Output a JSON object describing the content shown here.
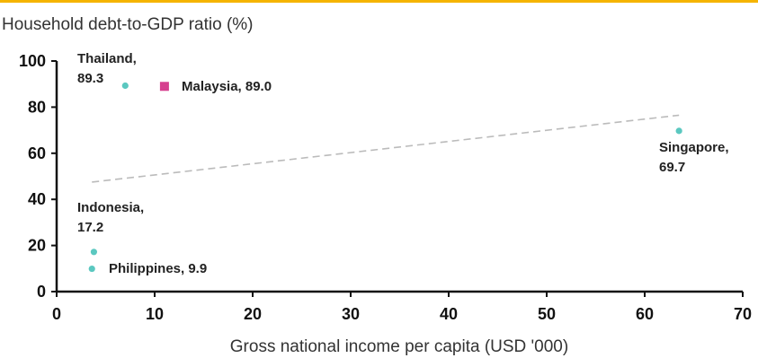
{
  "accent_color": "#f5b400",
  "chart_data": {
    "type": "scatter",
    "title": "Household debt-to-GDP ratio (%)",
    "xlabel": "Gross national income per capita (USD '000)",
    "ylabel": "",
    "xlim": [
      0,
      70
    ],
    "ylim": [
      0,
      100
    ],
    "x_ticks": [
      "0",
      "10",
      "20",
      "30",
      "40",
      "50",
      "60",
      "70"
    ],
    "y_ticks": [
      "0",
      "20",
      "40",
      "60",
      "80",
      "100"
    ],
    "grid": false,
    "points": [
      {
        "label_lines": [
          "Thailand,",
          "89.3"
        ],
        "x": 7.0,
        "y": 89.3,
        "color": "#5bc8c0",
        "marker": "circle"
      },
      {
        "label_lines": [
          "Malaysia, 89.0"
        ],
        "x": 11.0,
        "y": 89.0,
        "color": "#d6408f",
        "marker": "square"
      },
      {
        "label_lines": [
          "Singapore,",
          "69.7"
        ],
        "x": 63.5,
        "y": 69.7,
        "color": "#5bc8c0",
        "marker": "circle"
      },
      {
        "label_lines": [
          "Indonesia,",
          "17.2"
        ],
        "x": 3.8,
        "y": 17.2,
        "color": "#5bc8c0",
        "marker": "circle"
      },
      {
        "label_lines": [
          "Philippines, 9.9"
        ],
        "x": 3.6,
        "y": 9.9,
        "color": "#5bc8c0",
        "marker": "circle"
      }
    ],
    "trendline": {
      "style": "dashed",
      "color": "#bbbbbb",
      "x": [
        3.6,
        63.5
      ],
      "y": [
        47.5,
        76.5
      ]
    }
  }
}
